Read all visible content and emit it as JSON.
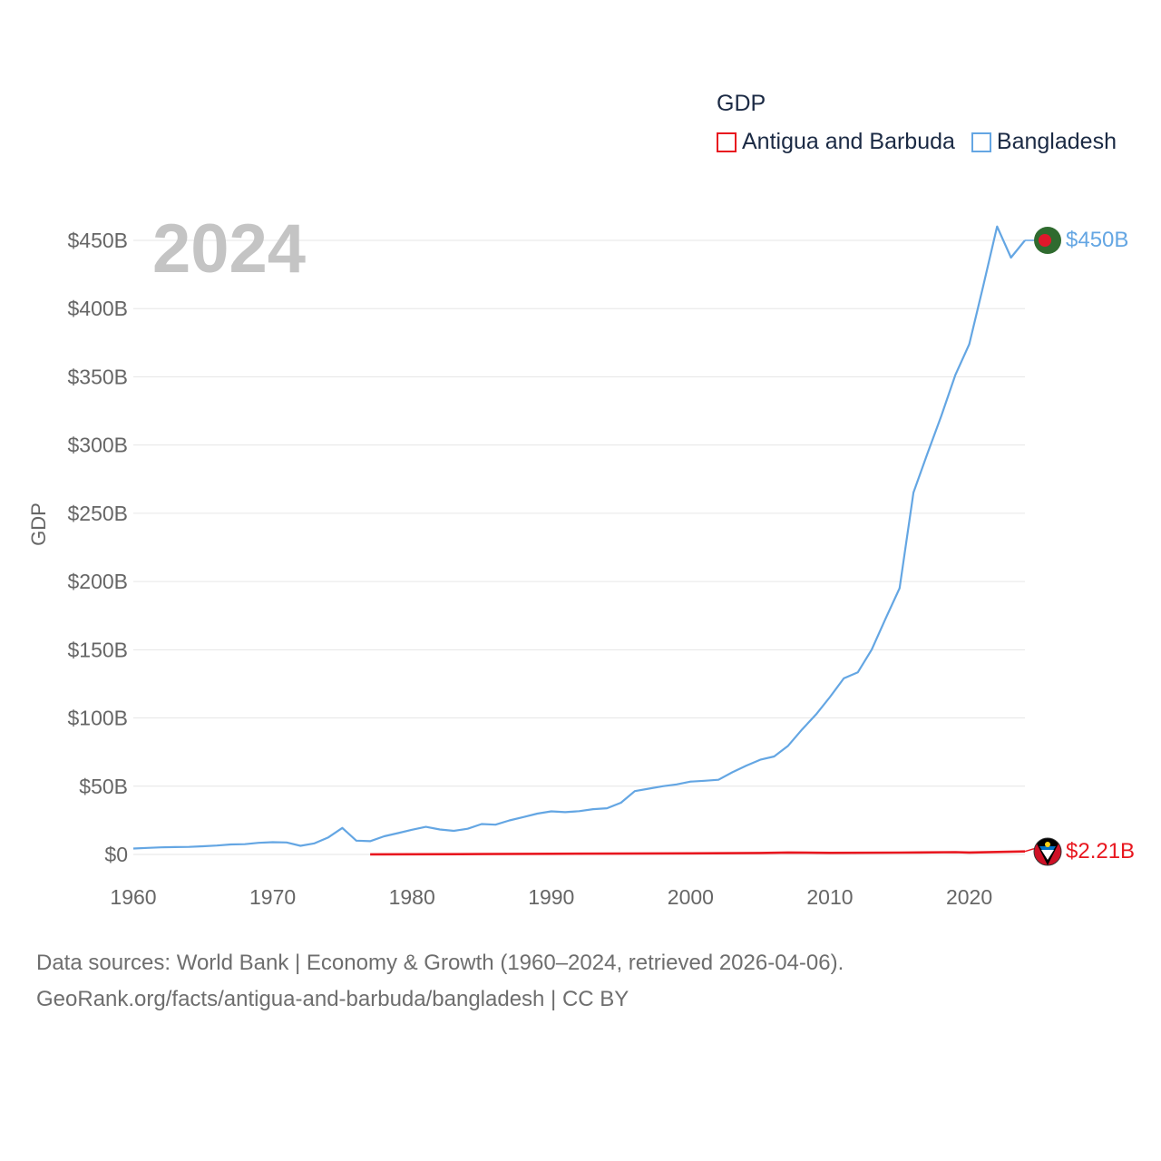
{
  "colors": {
    "antigua": "#e8171f",
    "bangladesh": "#64a6e3",
    "grid": "#e6e6e6",
    "axis_text": "#666666",
    "year_text": "#c4c4c4"
  },
  "legend": {
    "title": "GDP",
    "items": [
      {
        "label": "Antigua and Barbuda",
        "color": "#e8171f"
      },
      {
        "label": "Bangladesh",
        "color": "#64a6e3"
      }
    ]
  },
  "footer": {
    "line1": "Data sources: World Bank | Economy & Growth (1960–2024, retrieved 2026-04-06).",
    "line2": "GeoRank.org/facts/antigua-and-barbuda/bangladesh | CC BY"
  },
  "chart_data": {
    "type": "line",
    "title": "GDP",
    "year_label": "2024",
    "xlabel": "",
    "ylabel": "GDP",
    "xlim": [
      1960,
      2024
    ],
    "ylim": [
      0,
      450
    ],
    "x_ticks": [
      1960,
      1970,
      1980,
      1990,
      2000,
      2010,
      2020
    ],
    "y_ticks": [
      0,
      50,
      100,
      150,
      200,
      250,
      300,
      350,
      400,
      450
    ],
    "y_tick_labels": [
      "$0",
      "$50B",
      "$100B",
      "$150B",
      "$200B",
      "$250B",
      "$300B",
      "$350B",
      "$400B",
      "$450B"
    ],
    "grid": true,
    "legend_position": "top-right",
    "series": [
      {
        "name": "Bangladesh",
        "color": "#64a6e3",
        "end_label": "$450B",
        "x": [
          1960,
          1961,
          1962,
          1963,
          1964,
          1965,
          1966,
          1967,
          1968,
          1969,
          1970,
          1971,
          1972,
          1973,
          1974,
          1975,
          1976,
          1977,
          1978,
          1979,
          1980,
          1981,
          1982,
          1983,
          1984,
          1985,
          1986,
          1987,
          1988,
          1989,
          1990,
          1991,
          1992,
          1993,
          1994,
          1995,
          1996,
          1997,
          1998,
          1999,
          2000,
          2001,
          2002,
          2003,
          2004,
          2005,
          2006,
          2007,
          2008,
          2009,
          2010,
          2011,
          2012,
          2013,
          2014,
          2015,
          2016,
          2017,
          2018,
          2019,
          2020,
          2021,
          2022,
          2023,
          2024
        ],
        "values": [
          4.3,
          4.8,
          5.2,
          5.4,
          5.5,
          6.0,
          6.5,
          7.3,
          7.5,
          8.5,
          9.0,
          8.8,
          6.3,
          8.1,
          12.5,
          19.4,
          10.1,
          9.7,
          13.3,
          15.6,
          18.1,
          20.2,
          18.3,
          17.3,
          18.8,
          22.3,
          21.8,
          24.9,
          27.4,
          29.9,
          31.6,
          31.0,
          31.7,
          33.2,
          33.8,
          37.9,
          46.4,
          48.2,
          50.0,
          51.3,
          53.4,
          54.0,
          54.7,
          60.2,
          65.1,
          69.4,
          71.8,
          79.6,
          91.6,
          102.5,
          115.3,
          129.0,
          133.4,
          150.0,
          172.9,
          195.1,
          265.2,
          293.8,
          321.4,
          351.2,
          373.9,
          416.3,
          460.2,
          437.4,
          450.0
        ]
      },
      {
        "name": "Antigua and Barbuda",
        "color": "#e8171f",
        "end_label": "$2.21B",
        "x": [
          1977,
          1980,
          1985,
          1990,
          1995,
          2000,
          2005,
          2007,
          2010,
          2015,
          2019,
          2020,
          2024
        ],
        "values": [
          0.08,
          0.13,
          0.25,
          0.46,
          0.58,
          0.83,
          1.09,
          1.37,
          1.15,
          1.36,
          1.69,
          1.37,
          2.21
        ]
      }
    ]
  }
}
